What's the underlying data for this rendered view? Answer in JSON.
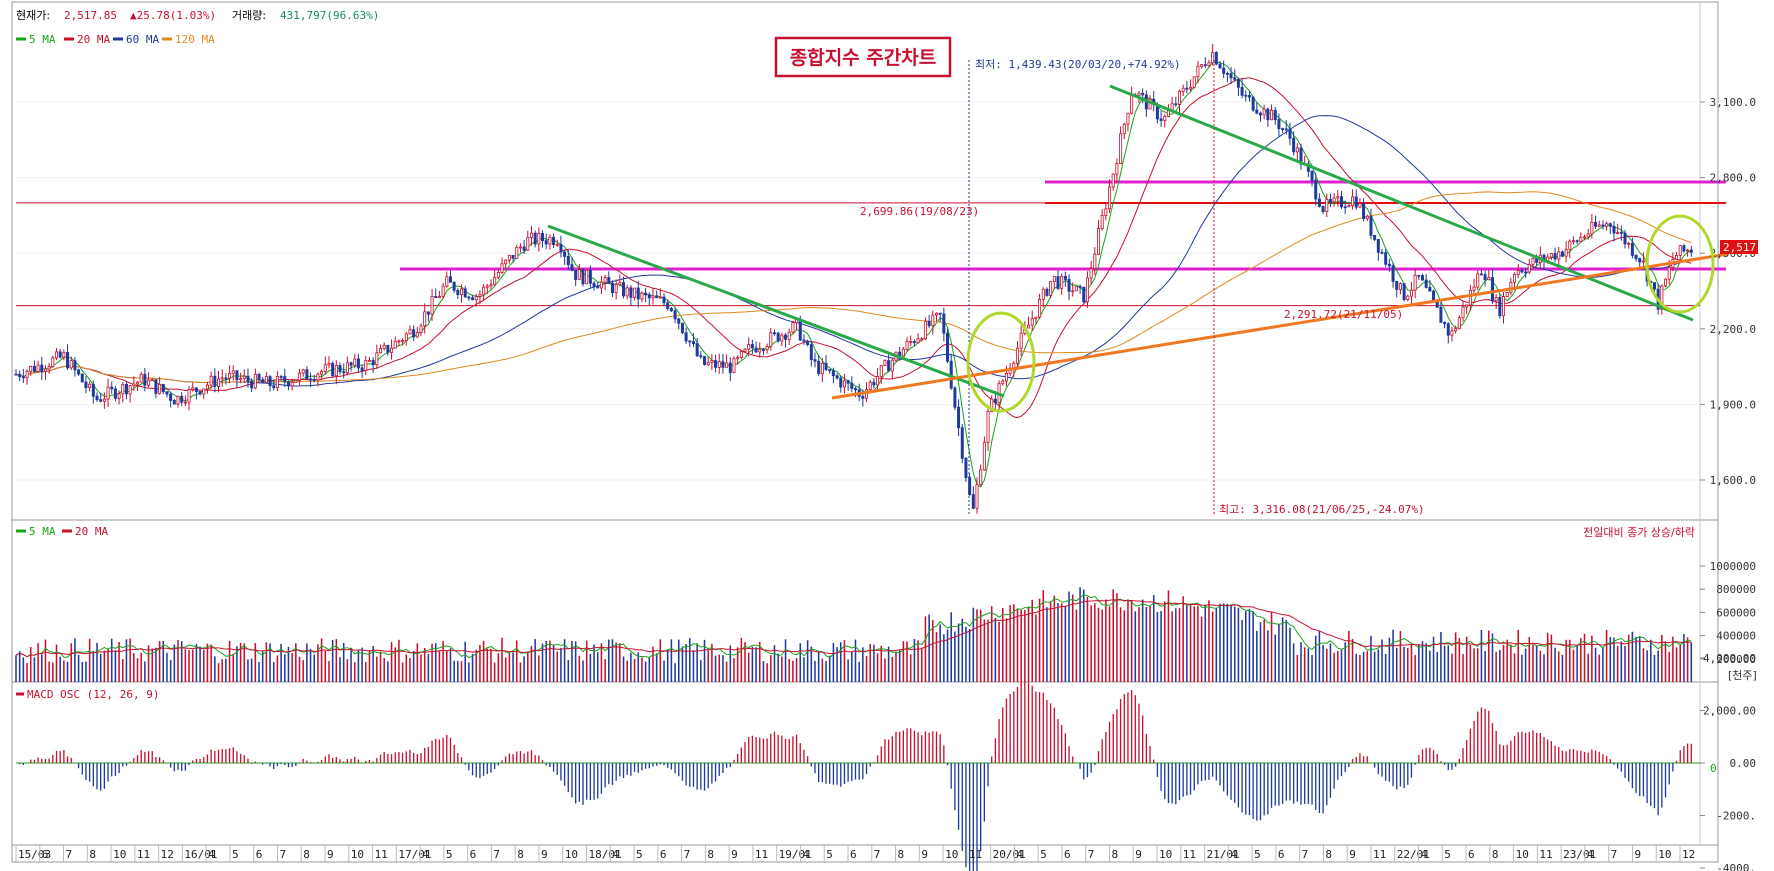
{
  "header": {
    "price_label": "현재가:",
    "price_value": "2,517.85",
    "change_value": "▲25.78(1.03%)",
    "volume_label": "거래량:",
    "volume_value": "431,797(96.63%)"
  },
  "colors": {
    "up": "#c8102e",
    "down": "#1f3a9e",
    "ma5": "#1aa31a",
    "ma20": "#c8102e",
    "ma60": "#1f3a9e",
    "ma120": "#e08a1e",
    "trend_green": "#2aa84a",
    "trend_orange": "#f07820",
    "resist_magenta": "#e020d0",
    "level_red": "#e01010",
    "circle": "#b0d82a"
  },
  "legend_price": [
    "5 MA",
    "20 MA",
    "60 MA",
    "120 MA"
  ],
  "legend_volume": [
    "5 MA",
    "20 MA"
  ],
  "title_box": "종합지수 주간차트",
  "annotations": {
    "low": "최저: 1,439.43(20/03/20,+74.92%)",
    "high": "최고: 3,316.08(21/06/25,-24.07%)",
    "level1": "2,699.86(19/08/23)",
    "level2": "2,291.72(21/11/05)",
    "last_price": "2,517"
  },
  "volume_header": "전일대비 종가 상승/하락",
  "volume_unit": "[천주]",
  "macd_legend": "MACD OSC (12, 26, 9)",
  "macd_zero": "0",
  "chart_data": [
    {
      "type": "candlestick",
      "panel": "price",
      "yticks": [
        "3,100.0",
        "2,800.0",
        "2,500.0",
        "2,200.0",
        "1,900.0",
        "1,600.0"
      ],
      "ylim": [
        1439,
        3316
      ],
      "xticks": [
        "15/03",
        "6",
        "7",
        "8",
        "10",
        "11",
        "12",
        "16/01",
        "4",
        "5",
        "6",
        "7",
        "8",
        "9",
        "10",
        "11",
        "17/01",
        "4",
        "5",
        "6",
        "7",
        "8",
        "9",
        "10",
        "18/01",
        "4",
        "5",
        "6",
        "7",
        "8",
        "9",
        "11",
        "19/01",
        "4",
        "5",
        "6",
        "7",
        "8",
        "9",
        "10",
        "11",
        "20/01",
        "4",
        "5",
        "6",
        "7",
        "8",
        "9",
        "10",
        "11",
        "21/01",
        "4",
        "5",
        "6",
        "7",
        "8",
        "9",
        "11",
        "22/01",
        "4",
        "5",
        "6",
        "8",
        "10",
        "11",
        "23/01",
        "4",
        "7",
        "9",
        "10",
        "12"
      ],
      "close_path": [
        [
          "15/03",
          2020
        ],
        [
          "15/06",
          2090
        ],
        [
          "15/08",
          1920
        ],
        [
          "15/11",
          2000
        ],
        [
          "16/01",
          1920
        ],
        [
          "16/04",
          2010
        ],
        [
          "16/07",
          1980
        ],
        [
          "16/10",
          2030
        ],
        [
          "17/01",
          2060
        ],
        [
          "17/04",
          2200
        ],
        [
          "17/06",
          2380
        ],
        [
          "17/08",
          2330
        ],
        [
          "17/10",
          2480
        ],
        [
          "17/11",
          2550
        ],
        [
          "18/01",
          2560
        ],
        [
          "18/02",
          2420
        ],
        [
          "18/06",
          2330
        ],
        [
          "18/08",
          2300
        ],
        [
          "18/10",
          2060
        ],
        [
          "18/12",
          2050
        ],
        [
          "19/01",
          2120
        ],
        [
          "19/04",
          2210
        ],
        [
          "19/05",
          2060
        ],
        [
          "19/08",
          1940
        ],
        [
          "19/10",
          2080
        ],
        [
          "19/12",
          2200
        ],
        [
          "20/01",
          2250
        ],
        [
          "20/03",
          1460
        ],
        [
          "20/04",
          1870
        ],
        [
          "20/06",
          2150
        ],
        [
          "20/08",
          2400
        ],
        [
          "20/10",
          2330
        ],
        [
          "20/12",
          2870
        ],
        [
          "21/01",
          3150
        ],
        [
          "21/03",
          3030
        ],
        [
          "21/06",
          3300
        ],
        [
          "21/08",
          3120
        ],
        [
          "21/10",
          3030
        ],
        [
          "21/11",
          2950
        ],
        [
          "22/01",
          2680
        ],
        [
          "22/03",
          2720
        ],
        [
          "22/06",
          2330
        ],
        [
          "22/07",
          2400
        ],
        [
          "22/09",
          2170
        ],
        [
          "22/11",
          2450
        ],
        [
          "22/12",
          2270
        ],
        [
          "23/01",
          2430
        ],
        [
          "23/04",
          2510
        ],
        [
          "23/06",
          2600
        ],
        [
          "23/07",
          2620
        ],
        [
          "23/09",
          2470
        ],
        [
          "23/10",
          2300
        ],
        [
          "23/11",
          2490
        ],
        [
          "23/12",
          2517
        ]
      ],
      "levels": [
        {
          "label": "2,699.86(19/08/23)",
          "value": 2699.86
        },
        {
          "label": "2,291.72(21/11/05)",
          "value": 2291.72
        }
      ],
      "extremes": [
        {
          "label": "최저: 1,439.43(20/03/20,+74.92%)",
          "value": 1439.43
        },
        {
          "label": "최고: 3,316.08(21/06/25,-24.07%)",
          "value": 3316.08
        }
      ],
      "series": [
        {
          "name": "5 MA"
        },
        {
          "name": "20 MA"
        },
        {
          "name": "60 MA"
        },
        {
          "name": "120 MA"
        }
      ]
    },
    {
      "type": "bar",
      "panel": "volume",
      "yticks": [
        "1000000",
        "800000",
        "600000",
        "400000",
        "200000"
      ],
      "ylim": [
        0,
        1100000
      ],
      "unit": "[천주]",
      "series": [
        {
          "name": "5 MA"
        },
        {
          "name": "20 MA"
        }
      ]
    },
    {
      "type": "bar",
      "panel": "macd",
      "name": "MACD OSC (12, 26, 9)",
      "yticks": [
        "4,000.00",
        "2,000.00",
        "0.00",
        "-2000.",
        "-4000."
      ],
      "ylim": [
        -5600,
        5600
      ]
    }
  ]
}
